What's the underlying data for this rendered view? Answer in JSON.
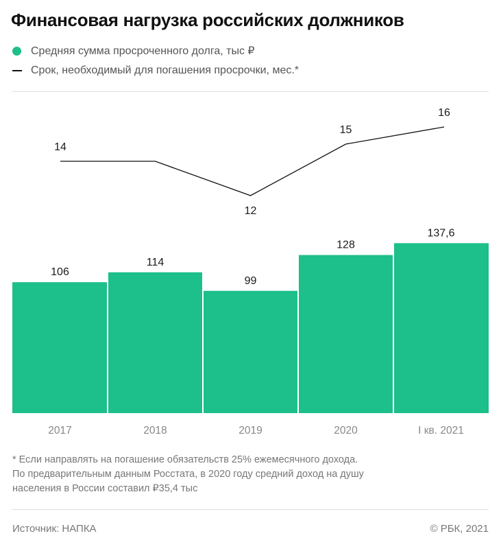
{
  "title": "Финансовая нагрузка российских должников",
  "legend": {
    "bars_label": "Средняя сумма просроченного долга, тыс ₽",
    "line_label": "Срок, необходимый для погашения просрочки, мес.*"
  },
  "colors": {
    "bar": "#1dbf8b",
    "line": "#111111"
  },
  "chart_data": {
    "type": "bar",
    "categories": [
      "2017",
      "2018",
      "2019",
      "2020",
      "I кв. 2021"
    ],
    "series": [
      {
        "name": "Средняя сумма просроченного долга, тыс ₽",
        "type": "bar",
        "values": [
          106,
          114,
          99,
          128,
          137.6
        ],
        "labels": [
          "106",
          "114",
          "99",
          "128",
          "137,6"
        ]
      },
      {
        "name": "Срок, необходимый для погашения просрочки, мес.*",
        "type": "line",
        "values": [
          14,
          14,
          12,
          15,
          16
        ],
        "labels": [
          "14",
          "",
          "12",
          "15",
          "16"
        ]
      }
    ],
    "grid": false,
    "legend_position": "top-left"
  },
  "footnote": [
    "* Если направлять на погашение обязательств 25% ежемесячного дохода.",
    "По предварительным данным Росстата, в 2020 году средний доход на душу",
    "населения в России составил ₽35,4 тыс"
  ],
  "source": "Источник: НАПКА",
  "copyright": "© РБК, 2021"
}
